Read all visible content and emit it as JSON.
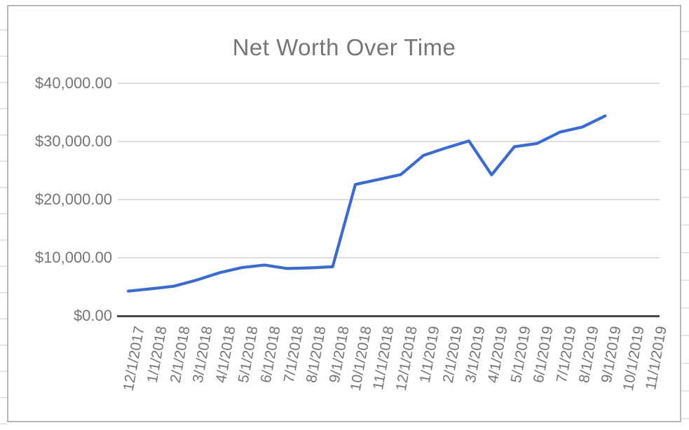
{
  "chart": {
    "title": "Net Worth Over Time",
    "colors": {
      "series_line": "#3c6bce",
      "gridline": "#dcdcdc",
      "baseline": "#4a4a4a",
      "label_text": "#757575",
      "frame_border": "#b7b7b7",
      "background": "#ffffff"
    },
    "y_axis": {
      "ticks": [
        {
          "label": "$40,000.00",
          "value": 40000
        },
        {
          "label": "$30,000.00",
          "value": 30000
        },
        {
          "label": "$20,000.00",
          "value": 20000
        },
        {
          "label": "$10,000.00",
          "value": 10000
        },
        {
          "label": "$0.00",
          "value": 0
        }
      ]
    }
  },
  "chart_data": {
    "type": "line",
    "title": "Net Worth Over Time",
    "x": [
      "12/1/2017",
      "1/1/2018",
      "2/1/2018",
      "3/1/2018",
      "4/1/2018",
      "5/1/2018",
      "6/1/2018",
      "7/1/2018",
      "8/1/2018",
      "9/1/2018",
      "10/1/2018",
      "11/1/2018",
      "12/1/2018",
      "1/1/2019",
      "2/1/2019",
      "3/1/2019",
      "4/1/2019",
      "5/1/2019",
      "6/1/2019",
      "7/1/2019",
      "8/1/2019",
      "9/1/2019",
      "10/1/2019",
      "11/1/2019"
    ],
    "series": [
      {
        "name": "Net Worth",
        "values": [
          4250,
          4650,
          5100,
          6150,
          7400,
          8300,
          8750,
          8150,
          8250,
          8450,
          22600,
          23450,
          24300,
          27600,
          28900,
          30100,
          24250,
          29100,
          29650,
          31600,
          32500,
          34400,
          null,
          null
        ]
      }
    ],
    "xlabel": "",
    "ylabel": "",
    "ylim": [
      0,
      40000
    ],
    "y_tick_interval": 10000,
    "y_tick_format": "$#,##0.00",
    "grid": true,
    "legend_position": "none",
    "line_color": "#3c6bce"
  }
}
